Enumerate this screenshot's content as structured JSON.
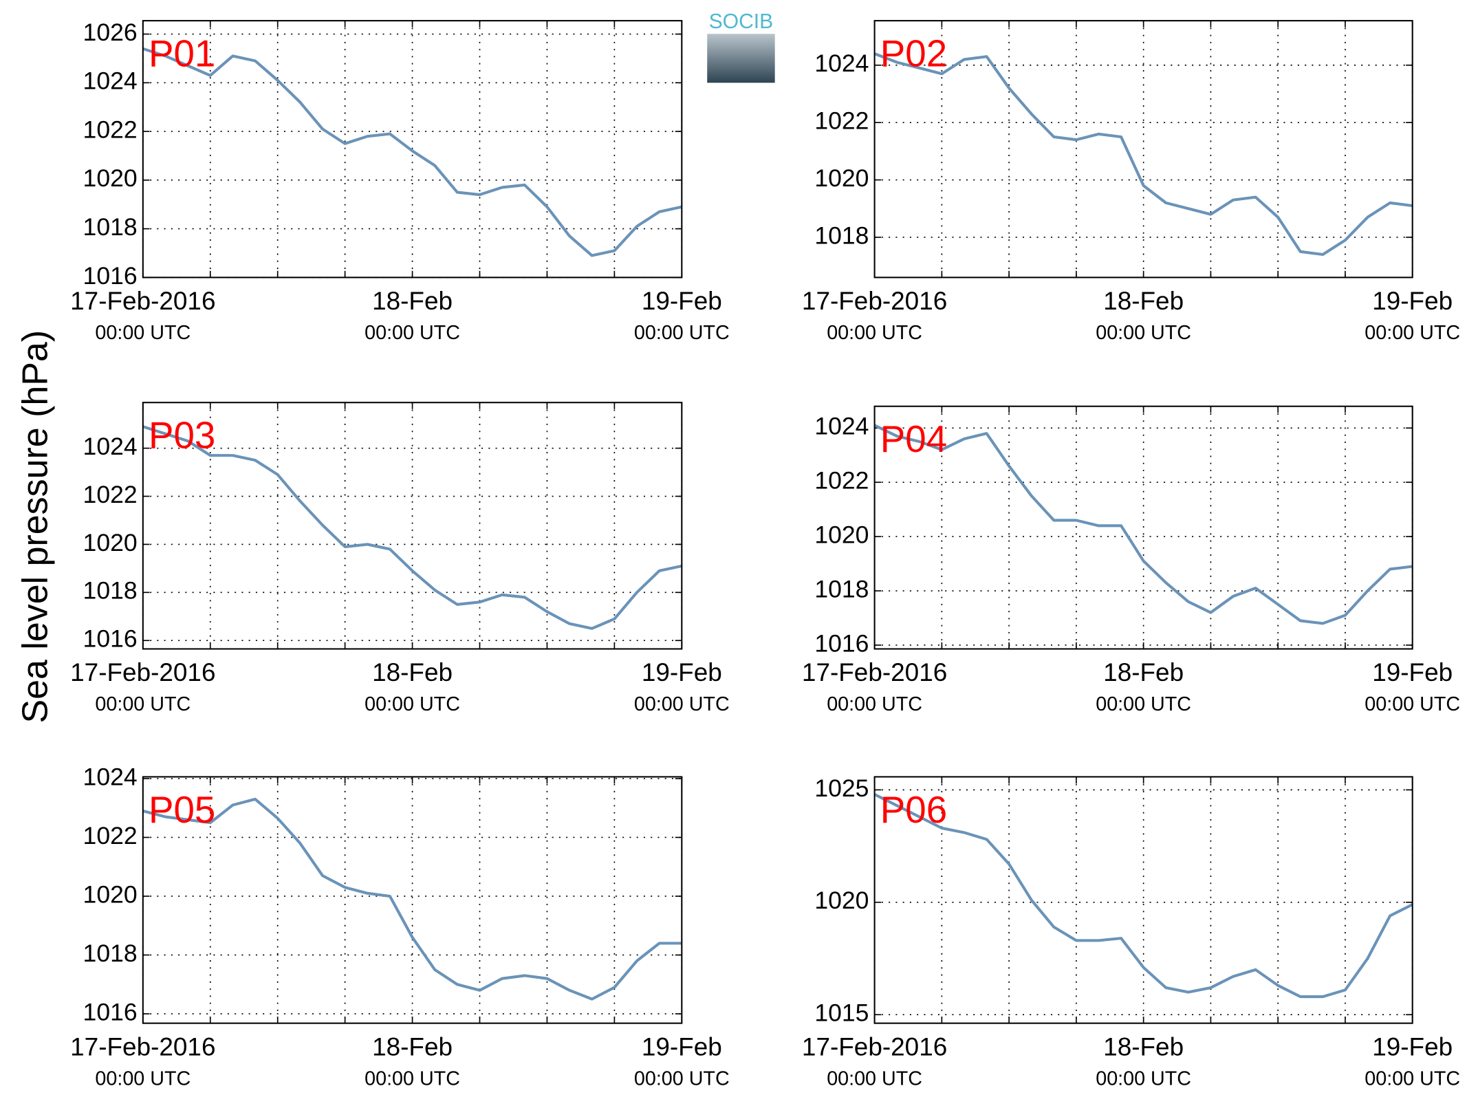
{
  "ylabel": "Sea level pressure (hPa)",
  "logo": "SOCIB",
  "chart_data": [
    {
      "type": "line",
      "title": "P01",
      "x": [
        0,
        2,
        4,
        6,
        8,
        10,
        12,
        14,
        16,
        18,
        20,
        22,
        24,
        26,
        28,
        30,
        32,
        34,
        36,
        38,
        40,
        42,
        44,
        46,
        48
      ],
      "xlim": [
        0,
        48
      ],
      "xticks": [
        {
          "value": 0,
          "label": [
            "17-Feb-2016",
            "00:00 UTC"
          ]
        },
        {
          "value": 6,
          "label": null
        },
        {
          "value": 12,
          "label": null
        },
        {
          "value": 18,
          "label": null
        },
        {
          "value": 24,
          "label": [
            "18-Feb",
            "00:00 UTC"
          ]
        },
        {
          "value": 30,
          "label": null
        },
        {
          "value": 36,
          "label": null
        },
        {
          "value": 42,
          "label": null
        },
        {
          "value": 48,
          "label": [
            "19-Feb",
            "00:00 UTC"
          ]
        }
      ],
      "ylim": [
        1016,
        1026.55
      ],
      "yticks": [
        1016,
        1018,
        1020,
        1022,
        1024,
        1026
      ],
      "grid": true,
      "series": [
        {
          "color": "#6a93b8",
          "values": [
            1025.4,
            1025.1,
            1024.7,
            1024.3,
            1025.1,
            1024.9,
            1024.1,
            1023.2,
            1022.1,
            1021.5,
            1021.8,
            1021.9,
            1021.2,
            1020.6,
            1019.5,
            1019.4,
            1019.7,
            1019.8,
            1018.9,
            1017.7,
            1016.9,
            1017.1,
            1018.1,
            1018.7,
            1018.9
          ]
        }
      ]
    },
    {
      "type": "line",
      "title": "P02",
      "x": [
        0,
        2,
        4,
        6,
        8,
        10,
        12,
        14,
        16,
        18,
        20,
        22,
        24,
        26,
        28,
        30,
        32,
        34,
        36,
        38,
        40,
        42,
        44,
        46,
        48
      ],
      "xlim": [
        0,
        48
      ],
      "xticks": [
        {
          "value": 0,
          "label": [
            "17-Feb-2016",
            "00:00 UTC"
          ]
        },
        {
          "value": 6,
          "label": null
        },
        {
          "value": 12,
          "label": null
        },
        {
          "value": 18,
          "label": null
        },
        {
          "value": 24,
          "label": [
            "18-Feb",
            "00:00 UTC"
          ]
        },
        {
          "value": 30,
          "label": null
        },
        {
          "value": 36,
          "label": null
        },
        {
          "value": 42,
          "label": null
        },
        {
          "value": 48,
          "label": [
            "19-Feb",
            "00:00 UTC"
          ]
        }
      ],
      "ylim": [
        1016.6,
        1025.55
      ],
      "yticks": [
        1018,
        1020,
        1022,
        1024
      ],
      "grid": true,
      "series": [
        {
          "color": "#6a93b8",
          "values": [
            1024.4,
            1024.1,
            1023.9,
            1023.7,
            1024.2,
            1024.3,
            1023.2,
            1022.3,
            1021.5,
            1021.4,
            1021.6,
            1021.5,
            1019.8,
            1019.2,
            1019.0,
            1018.8,
            1019.3,
            1019.4,
            1018.7,
            1017.5,
            1017.4,
            1017.9,
            1018.7,
            1019.2,
            1019.1
          ]
        }
      ]
    },
    {
      "type": "line",
      "title": "P03",
      "x": [
        0,
        2,
        4,
        6,
        8,
        10,
        12,
        14,
        16,
        18,
        20,
        22,
        24,
        26,
        28,
        30,
        32,
        34,
        36,
        38,
        40,
        42,
        44,
        46,
        48
      ],
      "xlim": [
        0,
        48
      ],
      "xticks": [
        {
          "value": 0,
          "label": [
            "17-Feb-2016",
            "00:00 UTC"
          ]
        },
        {
          "value": 6,
          "label": null
        },
        {
          "value": 12,
          "label": null
        },
        {
          "value": 18,
          "label": null
        },
        {
          "value": 24,
          "label": [
            "18-Feb",
            "00:00 UTC"
          ]
        },
        {
          "value": 30,
          "label": null
        },
        {
          "value": 36,
          "label": null
        },
        {
          "value": 42,
          "label": null
        },
        {
          "value": 48,
          "label": [
            "19-Feb",
            "00:00 UTC"
          ]
        }
      ],
      "ylim": [
        1015.65,
        1025.9
      ],
      "yticks": [
        1016,
        1018,
        1020,
        1022,
        1024
      ],
      "grid": true,
      "series": [
        {
          "color": "#6a93b8",
          "values": [
            1024.9,
            1024.6,
            1024.3,
            1023.7,
            1023.7,
            1023.5,
            1022.9,
            1021.8,
            1020.8,
            1019.9,
            1020.0,
            1019.8,
            1018.9,
            1018.1,
            1017.5,
            1017.6,
            1017.9,
            1017.8,
            1017.2,
            1016.7,
            1016.5,
            1016.9,
            1018.0,
            1018.9,
            1019.1
          ]
        }
      ]
    },
    {
      "type": "line",
      "title": "P04",
      "x": [
        0,
        2,
        4,
        6,
        8,
        10,
        12,
        14,
        16,
        18,
        20,
        22,
        24,
        26,
        28,
        30,
        32,
        34,
        36,
        38,
        40,
        42,
        44,
        46,
        48
      ],
      "xlim": [
        0,
        48
      ],
      "xticks": [
        {
          "value": 0,
          "label": [
            "17-Feb-2016",
            "00:00 UTC"
          ]
        },
        {
          "value": 6,
          "label": null
        },
        {
          "value": 12,
          "label": null
        },
        {
          "value": 18,
          "label": null
        },
        {
          "value": 24,
          "label": [
            "18-Feb",
            "00:00 UTC"
          ]
        },
        {
          "value": 30,
          "label": null
        },
        {
          "value": 36,
          "label": null
        },
        {
          "value": 42,
          "label": null
        },
        {
          "value": 48,
          "label": [
            "19-Feb",
            "00:00 UTC"
          ]
        }
      ],
      "ylim": [
        1015.86,
        1024.8
      ],
      "yticks": [
        1016,
        1018,
        1020,
        1022,
        1024
      ],
      "grid": true,
      "series": [
        {
          "color": "#6a93b8",
          "values": [
            1024.1,
            1023.7,
            1023.5,
            1023.2,
            1023.6,
            1023.8,
            1022.6,
            1021.5,
            1020.6,
            1020.6,
            1020.4,
            1020.4,
            1019.1,
            1018.3,
            1017.6,
            1017.2,
            1017.8,
            1018.1,
            1017.5,
            1016.9,
            1016.8,
            1017.1,
            1018.0,
            1018.8,
            1018.9
          ]
        }
      ]
    },
    {
      "type": "line",
      "title": "P05",
      "x": [
        0,
        2,
        4,
        6,
        8,
        10,
        12,
        14,
        16,
        18,
        20,
        22,
        24,
        26,
        28,
        30,
        32,
        34,
        36,
        38,
        40,
        42,
        44,
        46,
        48
      ],
      "xlim": [
        0,
        48
      ],
      "xticks": [
        {
          "value": 0,
          "label": [
            "17-Feb-2016",
            "00:00 UTC"
          ]
        },
        {
          "value": 6,
          "label": null
        },
        {
          "value": 12,
          "label": null
        },
        {
          "value": 18,
          "label": null
        },
        {
          "value": 24,
          "label": [
            "18-Feb",
            "00:00 UTC"
          ]
        },
        {
          "value": 30,
          "label": null
        },
        {
          "value": 36,
          "label": null
        },
        {
          "value": 42,
          "label": null
        },
        {
          "value": 48,
          "label": [
            "19-Feb",
            "00:00 UTC"
          ]
        }
      ],
      "ylim": [
        1015.68,
        1024.06
      ],
      "yticks": [
        1016,
        1018,
        1020,
        1022,
        1024
      ],
      "grid": true,
      "series": [
        {
          "color": "#6a93b8",
          "values": [
            1022.9,
            1022.7,
            1022.6,
            1022.5,
            1023.1,
            1023.3,
            1022.65,
            1021.8,
            1020.7,
            1020.3,
            1020.1,
            1020.0,
            1018.6,
            1017.5,
            1017.0,
            1016.8,
            1017.2,
            1017.3,
            1017.2,
            1016.8,
            1016.5,
            1016.9,
            1017.8,
            1018.4,
            1018.4
          ]
        }
      ]
    },
    {
      "type": "line",
      "title": "P06",
      "x": [
        0,
        2,
        4,
        6,
        8,
        10,
        12,
        14,
        16,
        18,
        20,
        22,
        24,
        26,
        28,
        30,
        32,
        34,
        36,
        38,
        40,
        42,
        44,
        46,
        48
      ],
      "xlim": [
        0,
        48
      ],
      "xticks": [
        {
          "value": 0,
          "label": [
            "17-Feb-2016",
            "00:00 UTC"
          ]
        },
        {
          "value": 6,
          "label": null
        },
        {
          "value": 12,
          "label": null
        },
        {
          "value": 18,
          "label": null
        },
        {
          "value": 24,
          "label": [
            "18-Feb",
            "00:00 UTC"
          ]
        },
        {
          "value": 30,
          "label": null
        },
        {
          "value": 36,
          "label": null
        },
        {
          "value": 42,
          "label": null
        },
        {
          "value": 48,
          "label": [
            "19-Feb",
            "00:00 UTC"
          ]
        }
      ],
      "ylim": [
        1014.62,
        1025.58
      ],
      "yticks": [
        1015,
        1020,
        1025
      ],
      "grid": true,
      "series": [
        {
          "color": "#6a93b8",
          "values": [
            1024.8,
            1024.3,
            1023.8,
            1023.3,
            1023.1,
            1022.8,
            1021.7,
            1020.1,
            1018.9,
            1018.3,
            1018.3,
            1018.4,
            1017.1,
            1016.2,
            1016.0,
            1016.2,
            1016.7,
            1017.0,
            1016.3,
            1015.8,
            1015.8,
            1016.1,
            1017.5,
            1019.4,
            1019.9
          ]
        }
      ]
    }
  ]
}
